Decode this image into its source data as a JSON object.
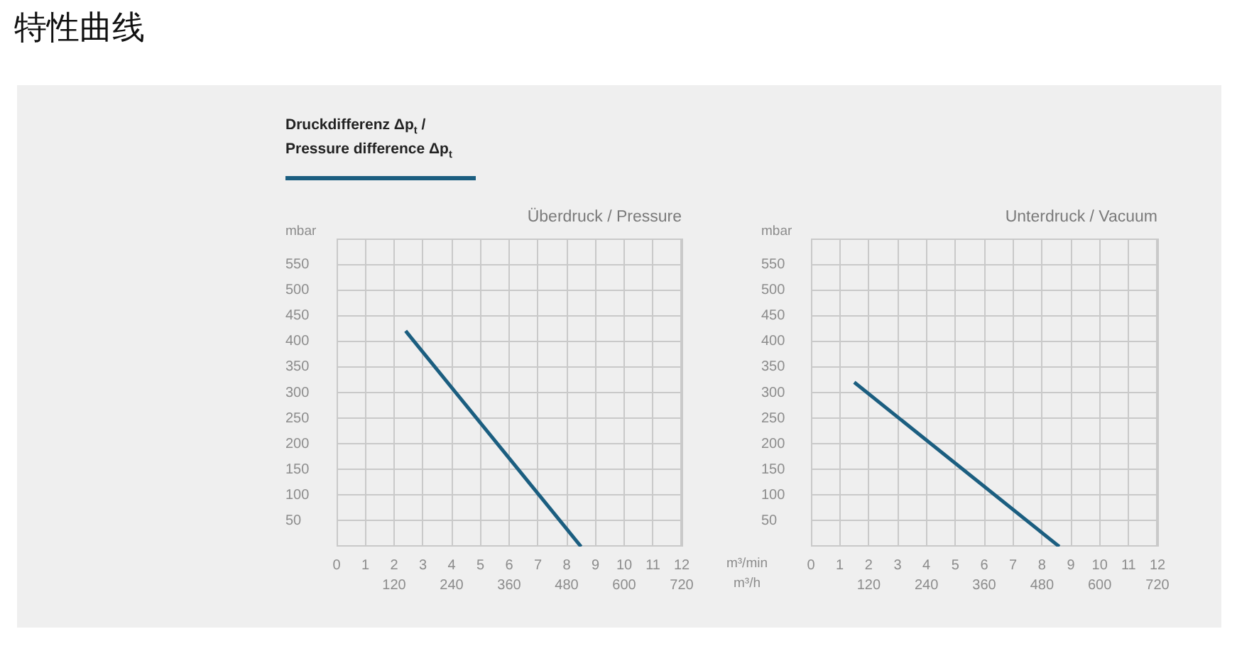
{
  "chart_data": [
    {
      "type": "line",
      "title": "特性曲线",
      "subtitle": "Überdruck / Pressure",
      "ylabel": "mbar",
      "x": [
        2.4,
        8.5
      ],
      "series": [
        {
          "name": "Druckdifferenz Δp$_{t}$ / Pressure difference Δp$_{t}$",
          "color": "#1b5e80",
          "values": [
            420,
            0
          ]
        }
      ],
      "xlim": [
        0,
        12
      ],
      "xticks": [
        0,
        1,
        2,
        3,
        4,
        5,
        6,
        7,
        8,
        9,
        10,
        11,
        12
      ],
      "x2lim": [
        0,
        720
      ],
      "x2ticks": [
        120,
        240,
        360,
        480,
        600,
        720
      ],
      "ylim": [
        0,
        600
      ],
      "yticks": [
        50,
        100,
        150,
        200,
        250,
        300,
        350,
        400,
        450,
        500,
        550
      ],
      "grid": true,
      "legend": "top left"
    },
    {
      "type": "line",
      "subtitle": "Unterdruck / Vacuum",
      "xlabel": "m³/min",
      "x2label": "m³/h",
      "ylabel": "mbar",
      "x": [
        1.5,
        8.6
      ],
      "series": [
        {
          "color": "#1b5e80",
          "values": [
            320,
            0
          ]
        }
      ],
      "xlim": [
        0,
        12
      ],
      "xticks": [
        0,
        1,
        2,
        3,
        4,
        5,
        6,
        7,
        8,
        9,
        10,
        11,
        12
      ],
      "x2lim": [
        0,
        720
      ],
      "x2ticks": [
        120,
        240,
        360,
        480,
        600,
        720
      ],
      "ylim": [
        0,
        600
      ],
      "yticks": [
        50,
        100,
        150,
        200,
        250,
        300,
        350,
        400,
        450,
        500,
        550
      ],
      "grid": true
    }
  ]
}
